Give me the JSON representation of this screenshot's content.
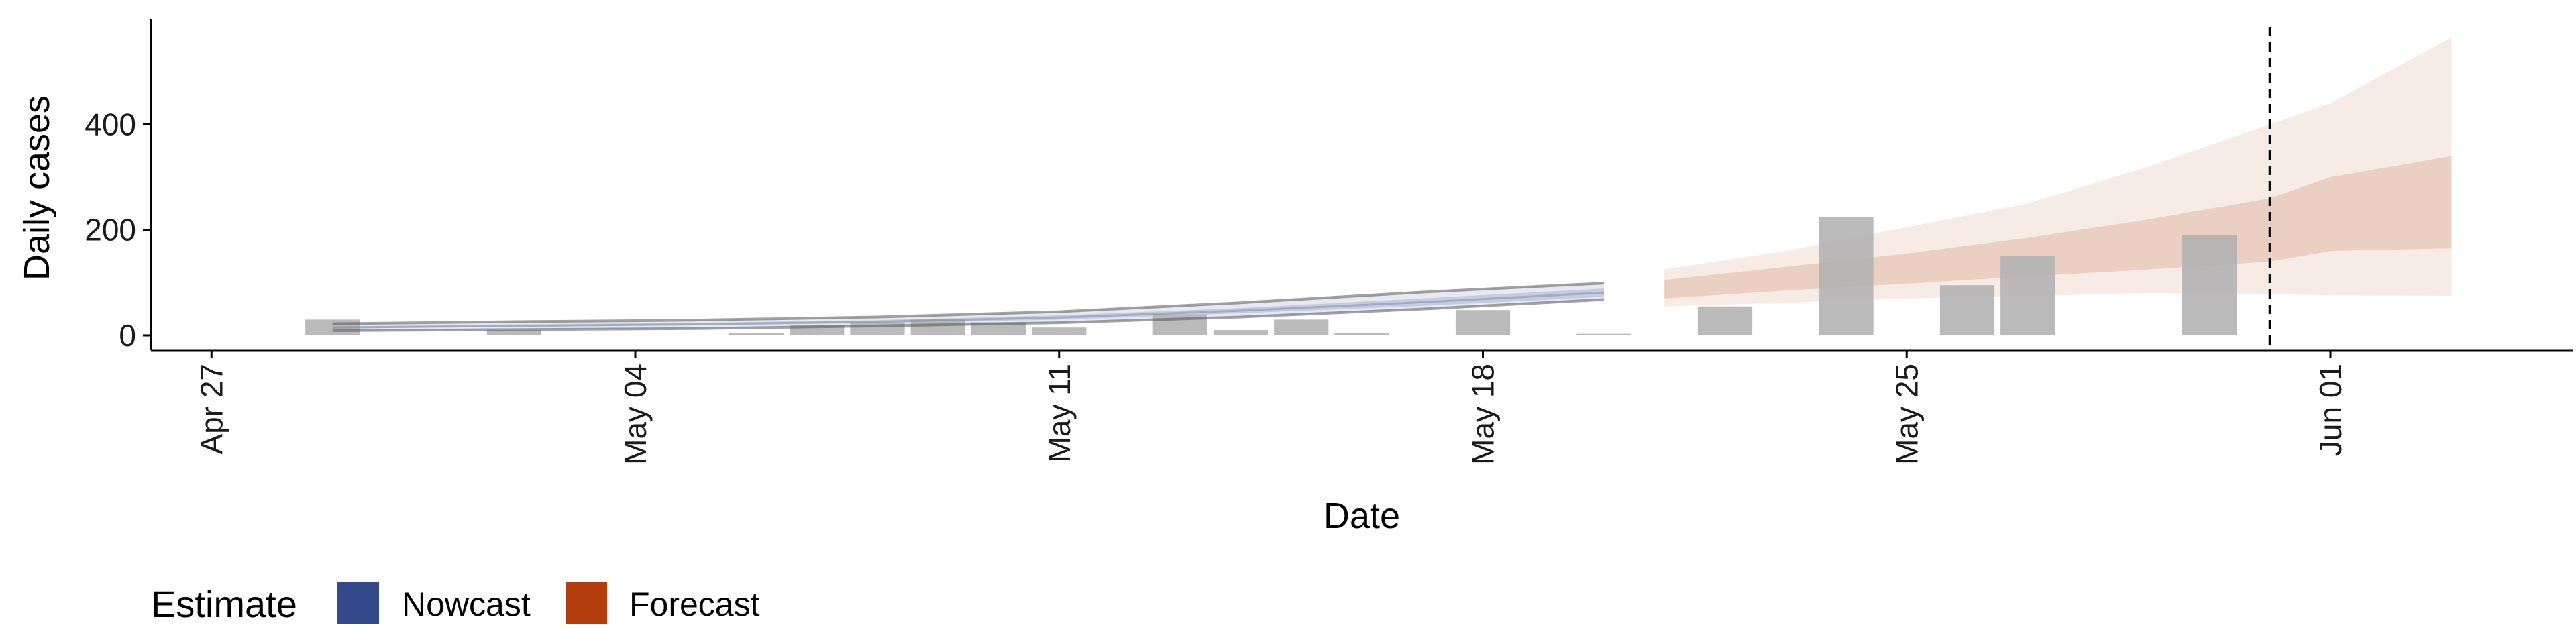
{
  "colors": {
    "nowcast": "#32498a",
    "forecast": "#b33d0e",
    "bars": "#b3b3b3",
    "axis": "#000000",
    "vline": "#000000"
  },
  "chart_data": {
    "type": "area",
    "xlabel": "Date",
    "ylabel": "Daily cases",
    "x_ticks": [
      "Apr 27",
      "May 04",
      "May 11",
      "May 18",
      "May 25",
      "Jun 01"
    ],
    "y_ticks": [
      "0",
      "200",
      "400"
    ],
    "xlim": [
      "2020-04-26",
      "2020-06-05"
    ],
    "ylim": [
      -28,
      600
    ],
    "grid": false,
    "legend_position": "bottom-left",
    "legend": {
      "title": "Estimate",
      "entries": [
        {
          "label": "Nowcast",
          "color_key": "nowcast"
        },
        {
          "label": "Forecast",
          "color_key": "forecast"
        }
      ]
    },
    "reference_line": {
      "date": "2020-05-31",
      "style": "dashed"
    },
    "observed_cases": [
      {
        "date": "2020-04-29",
        "value": 30
      },
      {
        "date": "2020-05-02",
        "value": 10
      },
      {
        "date": "2020-05-06",
        "value": 5
      },
      {
        "date": "2020-05-07",
        "value": 20
      },
      {
        "date": "2020-05-08",
        "value": 25
      },
      {
        "date": "2020-05-09",
        "value": 30
      },
      {
        "date": "2020-05-10",
        "value": 25
      },
      {
        "date": "2020-05-11",
        "value": 15
      },
      {
        "date": "2020-05-13",
        "value": 40
      },
      {
        "date": "2020-05-14",
        "value": 10
      },
      {
        "date": "2020-05-15",
        "value": 30
      },
      {
        "date": "2020-05-16",
        "value": 4
      },
      {
        "date": "2020-05-18",
        "value": 48
      },
      {
        "date": "2020-05-20",
        "value": 3
      },
      {
        "date": "2020-05-22",
        "value": 55
      },
      {
        "date": "2020-05-24",
        "value": 225
      },
      {
        "date": "2020-05-26",
        "value": 95
      },
      {
        "date": "2020-05-27",
        "value": 150
      },
      {
        "date": "2020-05-30",
        "value": 190
      }
    ],
    "series": [
      {
        "name": "Nowcast",
        "color_key": "nowcast",
        "dates": [
          "2020-04-29",
          "2020-05-02",
          "2020-05-05",
          "2020-05-08",
          "2020-05-11",
          "2020-05-14",
          "2020-05-17",
          "2020-05-20"
        ],
        "median": [
          15,
          18,
          21,
          26,
          34,
          47,
          63,
          81
        ],
        "lower_50": [
          13,
          16,
          19,
          23,
          30,
          42,
          56,
          73
        ],
        "upper_50": [
          17,
          21,
          24,
          29,
          38,
          52,
          70,
          89
        ],
        "lower_90": [
          9,
          11,
          13,
          18,
          24,
          35,
          50,
          68
        ],
        "upper_90": [
          22,
          26,
          29,
          35,
          45,
          62,
          82,
          99
        ]
      },
      {
        "name": "Forecast",
        "color_key": "forecast",
        "dates": [
          "2020-05-21",
          "2020-05-23",
          "2020-05-25",
          "2020-05-27",
          "2020-05-29",
          "2020-05-31",
          "2020-06-01",
          "2020-06-03"
        ],
        "median": [
          92,
          110,
          130,
          155,
          185,
          215,
          250,
          285
        ],
        "lower_50": [
          70,
          85,
          98,
          112,
          125,
          140,
          160,
          165
        ],
        "upper_50": [
          105,
          130,
          155,
          185,
          220,
          260,
          300,
          340
        ],
        "lower_90": [
          55,
          62,
          70,
          75,
          80,
          78,
          76,
          75
        ],
        "upper_90": [
          125,
          160,
          205,
          250,
          320,
          400,
          440,
          565
        ]
      }
    ]
  }
}
